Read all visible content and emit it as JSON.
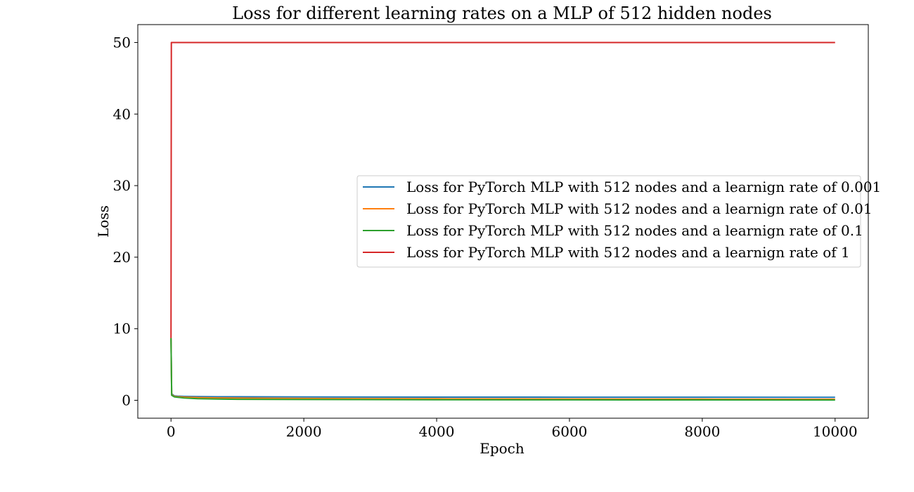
{
  "chart_data": {
    "type": "line",
    "title": "Loss for different learning rates on a MLP of 512 hidden nodes",
    "xlabel": "Epoch",
    "ylabel": "Loss",
    "xlim": [
      -500,
      10500
    ],
    "ylim": [
      -2.5,
      52.5
    ],
    "xticks": [
      0,
      2000,
      4000,
      6000,
      8000,
      10000
    ],
    "yticks": [
      0,
      10,
      20,
      30,
      40,
      50
    ],
    "grid": false,
    "legend_position": "center-right",
    "series": [
      {
        "name": "Loss for PyTorch MLP with 512 nodes and a learnign rate of 0.001",
        "color": "#1f77b4",
        "x": [
          0,
          10,
          50,
          100,
          200,
          400,
          700,
          1000,
          2000,
          4000,
          6000,
          8000,
          10000
        ],
        "y": [
          8.6,
          0.9,
          0.62,
          0.58,
          0.55,
          0.52,
          0.5,
          0.49,
          0.47,
          0.45,
          0.44,
          0.43,
          0.42
        ]
      },
      {
        "name": "Loss for PyTorch MLP with 512 nodes and a learnign rate of 0.01",
        "color": "#ff7f0e",
        "x": [
          0,
          10,
          50,
          100,
          200,
          400,
          700,
          1000,
          2000,
          4000,
          6000,
          8000,
          10000
        ],
        "y": [
          8.7,
          0.8,
          0.55,
          0.5,
          0.45,
          0.38,
          0.34,
          0.31,
          0.26,
          0.22,
          0.19,
          0.17,
          0.15
        ]
      },
      {
        "name": "Loss for PyTorch MLP with 512 nodes and a learnign rate of 0.1",
        "color": "#2ca02c",
        "x": [
          0,
          10,
          50,
          100,
          200,
          400,
          700,
          1000,
          2000,
          4000,
          6000,
          8000,
          10000
        ],
        "y": [
          8.7,
          0.7,
          0.48,
          0.42,
          0.32,
          0.22,
          0.17,
          0.14,
          0.11,
          0.08,
          0.06,
          0.05,
          0.04
        ]
      },
      {
        "name": "Loss for PyTorch MLP with 512 nodes and a learnign rate of 1",
        "color": "#d62728",
        "x": [
          0,
          5,
          10,
          100,
          1000,
          5000,
          10000
        ],
        "y": [
          8.7,
          50.0,
          50.0,
          50.0,
          50.0,
          50.0,
          50.0
        ]
      }
    ]
  }
}
